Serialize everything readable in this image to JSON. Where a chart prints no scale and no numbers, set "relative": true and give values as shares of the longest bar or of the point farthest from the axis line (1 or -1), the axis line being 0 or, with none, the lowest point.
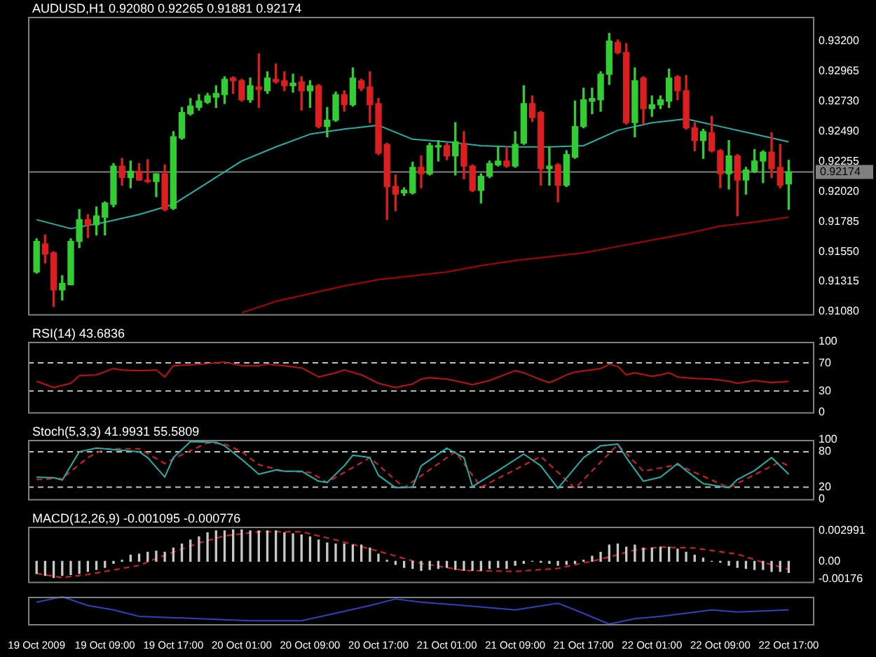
{
  "chart_data": [
    {
      "type": "candlestick",
      "title": "AUDUSD,H1 0.92080 0.92265 0.91881 0.92174",
      "x": [
        "2009-10-19T01:00",
        "2009-10-19T02:00",
        "2009-10-19T03:00",
        "2009-10-19T04:00",
        "2009-10-19T05:00",
        "2009-10-19T06:00",
        "2009-10-19T07:00",
        "2009-10-19T08:00",
        "2009-10-19T09:00",
        "2009-10-19T10:00",
        "2009-10-19T11:00",
        "2009-10-19T12:00",
        "2009-10-19T13:00",
        "2009-10-19T14:00",
        "2009-10-19T15:00",
        "2009-10-19T16:00",
        "2009-10-19T17:00",
        "2009-10-19T18:00",
        "2009-10-19T19:00",
        "2009-10-19T20:00",
        "2009-10-19T21:00",
        "2009-10-19T22:00",
        "2009-10-19T23:00",
        "2009-10-20T00:00",
        "2009-10-20T01:00",
        "2009-10-20T02:00",
        "2009-10-20T03:00",
        "2009-10-20T04:00",
        "2009-10-20T05:00",
        "2009-10-20T06:00",
        "2009-10-20T07:00",
        "2009-10-20T08:00",
        "2009-10-20T09:00",
        "2009-10-20T10:00",
        "2009-10-20T11:00",
        "2009-10-20T12:00",
        "2009-10-20T13:00",
        "2009-10-20T14:00",
        "2009-10-20T15:00",
        "2009-10-20T16:00",
        "2009-10-20T17:00",
        "2009-10-20T18:00",
        "2009-10-20T19:00",
        "2009-10-20T20:00",
        "2009-10-20T21:00",
        "2009-10-20T22:00",
        "2009-10-20T23:00",
        "2009-10-21T00:00",
        "2009-10-21T01:00",
        "2009-10-21T02:00",
        "2009-10-21T03:00",
        "2009-10-21T04:00",
        "2009-10-21T05:00",
        "2009-10-21T06:00",
        "2009-10-21T07:00",
        "2009-10-21T08:00",
        "2009-10-21T09:00",
        "2009-10-21T10:00",
        "2009-10-21T11:00",
        "2009-10-21T12:00",
        "2009-10-21T13:00",
        "2009-10-21T14:00",
        "2009-10-21T15:00",
        "2009-10-21T16:00",
        "2009-10-21T17:00",
        "2009-10-21T18:00",
        "2009-10-21T19:00",
        "2009-10-21T20:00",
        "2009-10-21T21:00",
        "2009-10-21T22:00",
        "2009-10-21T23:00",
        "2009-10-22T00:00",
        "2009-10-22T01:00",
        "2009-10-22T02:00",
        "2009-10-22T03:00",
        "2009-10-22T04:00",
        "2009-10-22T05:00",
        "2009-10-22T06:00",
        "2009-10-22T07:00",
        "2009-10-22T08:00",
        "2009-10-22T09:00",
        "2009-10-22T10:00",
        "2009-10-22T11:00",
        "2009-10-22T12:00",
        "2009-10-22T13:00",
        "2009-10-22T14:00",
        "2009-10-22T15:00",
        "2009-10-22T16:00",
        "2009-10-22T17:00"
      ],
      "ohlc": [
        [
          0.9139,
          0.9165,
          0.9138,
          0.9163
        ],
        [
          0.9161,
          0.9168,
          0.9146,
          0.9153
        ],
        [
          0.9154,
          0.9155,
          0.9112,
          0.9125
        ],
        [
          0.9125,
          0.9136,
          0.9117,
          0.913
        ],
        [
          0.9129,
          0.9165,
          0.9129,
          0.9163
        ],
        [
          0.9163,
          0.9188,
          0.9158,
          0.918
        ],
        [
          0.918,
          0.9184,
          0.9166,
          0.9176
        ],
        [
          0.9176,
          0.919,
          0.9168,
          0.9183
        ],
        [
          0.9182,
          0.9194,
          0.9168,
          0.9193
        ],
        [
          0.9192,
          0.9224,
          0.919,
          0.9222
        ],
        [
          0.9222,
          0.9228,
          0.9207,
          0.9213
        ],
        [
          0.9213,
          0.9226,
          0.9205,
          0.9218
        ],
        [
          0.9218,
          0.9224,
          0.9211,
          0.9211
        ],
        [
          0.9211,
          0.9227,
          0.9209,
          0.921
        ],
        [
          0.921,
          0.9216,
          0.9198,
          0.9216
        ],
        [
          0.9216,
          0.9223,
          0.9187,
          0.9188
        ],
        [
          0.9189,
          0.9249,
          0.9188,
          0.9245
        ],
        [
          0.9244,
          0.9268,
          0.9243,
          0.9264
        ],
        [
          0.9263,
          0.9275,
          0.9262,
          0.9269
        ],
        [
          0.9268,
          0.9278,
          0.9266,
          0.9273
        ],
        [
          0.9272,
          0.9279,
          0.9271,
          0.9277
        ],
        [
          0.9276,
          0.9285,
          0.9268,
          0.9279
        ],
        [
          0.9278,
          0.9292,
          0.9271,
          0.929
        ],
        [
          0.9291,
          0.9292,
          0.9279,
          0.9289
        ],
        [
          0.9289,
          0.929,
          0.9273,
          0.9274
        ],
        [
          0.9274,
          0.9291,
          0.9272,
          0.9285
        ],
        [
          0.9284,
          0.931,
          0.9268,
          0.9282
        ],
        [
          0.9281,
          0.9296,
          0.9279,
          0.9291
        ],
        [
          0.929,
          0.9302,
          0.9287,
          0.9288
        ],
        [
          0.9289,
          0.9296,
          0.9281,
          0.9285
        ],
        [
          0.9285,
          0.9294,
          0.928,
          0.9287
        ],
        [
          0.9288,
          0.9292,
          0.9266,
          0.9281
        ],
        [
          0.9281,
          0.9289,
          0.9268,
          0.9285
        ],
        [
          0.9285,
          0.9286,
          0.9252,
          0.9253
        ],
        [
          0.9253,
          0.9268,
          0.9245,
          0.9258
        ],
        [
          0.9258,
          0.928,
          0.9257,
          0.9278
        ],
        [
          0.9278,
          0.9281,
          0.9265,
          0.927
        ],
        [
          0.927,
          0.9299,
          0.9269,
          0.9291
        ],
        [
          0.9289,
          0.929,
          0.9281,
          0.9283
        ],
        [
          0.9284,
          0.9296,
          0.9256,
          0.927
        ],
        [
          0.9271,
          0.9275,
          0.9231,
          0.9232
        ],
        [
          0.9239,
          0.924,
          0.918,
          0.9206
        ],
        [
          0.9206,
          0.9215,
          0.9187,
          0.92
        ],
        [
          0.9201,
          0.9205,
          0.9199,
          0.9203
        ],
        [
          0.9201,
          0.9225,
          0.92,
          0.9221
        ],
        [
          0.9221,
          0.923,
          0.9205,
          0.9216
        ],
        [
          0.9216,
          0.924,
          0.9215,
          0.9238
        ],
        [
          0.9237,
          0.9242,
          0.9226,
          0.9238
        ],
        [
          0.9238,
          0.924,
          0.9227,
          0.923
        ],
        [
          0.923,
          0.9256,
          0.9215,
          0.9241
        ],
        [
          0.924,
          0.9249,
          0.9212,
          0.9222
        ],
        [
          0.9222,
          0.9223,
          0.9202,
          0.9203
        ],
        [
          0.9203,
          0.9216,
          0.9193,
          0.9214
        ],
        [
          0.9214,
          0.9226,
          0.9213,
          0.9224
        ],
        [
          0.9223,
          0.9237,
          0.9222,
          0.9226
        ],
        [
          0.9226,
          0.9237,
          0.9221,
          0.9222
        ],
        [
          0.9222,
          0.9249,
          0.9221,
          0.9239
        ],
        [
          0.924,
          0.9285,
          0.9239,
          0.9271
        ],
        [
          0.9271,
          0.9277,
          0.9257,
          0.926
        ],
        [
          0.9264,
          0.9265,
          0.9207,
          0.922
        ],
        [
          0.922,
          0.9237,
          0.9207,
          0.9222
        ],
        [
          0.9223,
          0.9224,
          0.9194,
          0.9207
        ],
        [
          0.9207,
          0.9234,
          0.9206,
          0.9231
        ],
        [
          0.9229,
          0.9273,
          0.9228,
          0.9253
        ],
        [
          0.9253,
          0.9283,
          0.9252,
          0.9274
        ],
        [
          0.9273,
          0.9283,
          0.9263,
          0.9275
        ],
        [
          0.9274,
          0.9296,
          0.9265,
          0.9294
        ],
        [
          0.9294,
          0.9326,
          0.9286,
          0.932
        ],
        [
          0.9319,
          0.9321,
          0.931,
          0.9311
        ],
        [
          0.9311,
          0.9318,
          0.9255,
          0.9256
        ],
        [
          0.9256,
          0.9299,
          0.9245,
          0.9289
        ],
        [
          0.9291,
          0.9292,
          0.9255,
          0.9267
        ],
        [
          0.9267,
          0.9277,
          0.9261,
          0.927
        ],
        [
          0.927,
          0.9277,
          0.9267,
          0.9274
        ],
        [
          0.9273,
          0.9298,
          0.9268,
          0.9291
        ],
        [
          0.9292,
          0.9293,
          0.9274,
          0.9281
        ],
        [
          0.9281,
          0.9293,
          0.9251,
          0.9252
        ],
        [
          0.9252,
          0.9256,
          0.9234,
          0.9242
        ],
        [
          0.9242,
          0.9251,
          0.9228,
          0.9249
        ],
        [
          0.9248,
          0.9261,
          0.9233,
          0.9234
        ],
        [
          0.9234,
          0.9235,
          0.9205,
          0.9216
        ],
        [
          0.9216,
          0.9242,
          0.9204,
          0.923
        ],
        [
          0.923,
          0.9231,
          0.9183,
          0.9211
        ],
        [
          0.9211,
          0.9221,
          0.92,
          0.9219
        ],
        [
          0.9218,
          0.9235,
          0.9217,
          0.9226
        ],
        [
          0.9226,
          0.9234,
          0.9209,
          0.9233
        ],
        [
          0.9233,
          0.9248,
          0.9213,
          0.922
        ],
        [
          0.9221,
          0.9239,
          0.9205,
          0.9207
        ],
        [
          0.9208,
          0.92265,
          0.91881,
          0.92174
        ]
      ],
      "colors": [
        "#32cd32",
        "#dc1e1e",
        "#dc1e1e",
        "#32cd32",
        "#32cd32",
        "#32cd32",
        "#dc1e1e",
        "#32cd32",
        "#32cd32",
        "#32cd32",
        "#dc1e1e",
        "#32cd32",
        "#dc1e1e",
        "#dc1e1e",
        "#32cd32",
        "#dc1e1e",
        "#32cd32",
        "#32cd32",
        "#32cd32",
        "#32cd32",
        "#32cd32",
        "#32cd32",
        "#32cd32",
        "#dc1e1e",
        "#dc1e1e",
        "#32cd32",
        "#dc1e1e",
        "#32cd32",
        "#dc1e1e",
        "#dc1e1e",
        "#32cd32",
        "#dc1e1e",
        "#32cd32",
        "#dc1e1e",
        "#32cd32",
        "#32cd32",
        "#dc1e1e",
        "#32cd32",
        "#dc1e1e",
        "#dc1e1e",
        "#dc1e1e",
        "#dc1e1e",
        "#dc1e1e",
        "#32cd32",
        "#32cd32",
        "#dc1e1e",
        "#32cd32",
        "#32cd32",
        "#dc1e1e",
        "#32cd32",
        "#dc1e1e",
        "#dc1e1e",
        "#32cd32",
        "#32cd32",
        "#32cd32",
        "#dc1e1e",
        "#32cd32",
        "#32cd32",
        "#dc1e1e",
        "#dc1e1e",
        "#32cd32",
        "#dc1e1e",
        "#32cd32",
        "#32cd32",
        "#32cd32",
        "#32cd32",
        "#32cd32",
        "#32cd32",
        "#dc1e1e",
        "#dc1e1e",
        "#32cd32",
        "#dc1e1e",
        "#32cd32",
        "#32cd32",
        "#32cd32",
        "#dc1e1e",
        "#dc1e1e",
        "#dc1e1e",
        "#32cd32",
        "#dc1e1e",
        "#dc1e1e",
        "#32cd32",
        "#dc1e1e",
        "#32cd32",
        "#32cd32",
        "#32cd32",
        "#dc1e1e",
        "#dc1e1e",
        "#32cd32"
      ],
      "series": [
        {
          "type": "line",
          "color": "#20b2aa",
          "x": [
            "2009-10-19T01:00",
            "2009-10-19T05:00",
            "2009-10-19T09:00",
            "2009-10-19T13:00",
            "2009-10-19T17:00",
            "2009-10-19T21:00",
            "2009-10-20T01:00",
            "2009-10-20T05:00",
            "2009-10-20T09:00",
            "2009-10-20T13:00",
            "2009-10-20T17:00",
            "2009-10-20T21:00",
            "2009-10-21T01:00",
            "2009-10-21T05:00",
            "2009-10-21T09:00",
            "2009-10-21T13:00",
            "2009-10-21T17:00",
            "2009-10-21T21:00",
            "2009-10-22T01:00",
            "2009-10-22T05:00",
            "2009-10-22T09:00",
            "2009-10-22T13:00",
            "2009-10-22T17:00"
          ],
          "values": [
            0.918,
            0.9173,
            0.9178,
            0.9184,
            0.9192,
            0.9209,
            0.9226,
            0.9237,
            0.9247,
            0.9251,
            0.9254,
            0.9243,
            0.9241,
            0.9238,
            0.9237,
            0.9237,
            0.9238,
            0.925,
            0.9256,
            0.9259,
            0.9253,
            0.9247,
            0.9241
          ]
        },
        {
          "type": "line",
          "color": "#b00000",
          "x": [
            "2009-10-20T01:00",
            "2009-10-20T05:00",
            "2009-10-20T09:00",
            "2009-10-20T13:00",
            "2009-10-20T17:00",
            "2009-10-20T21:00",
            "2009-10-21T01:00",
            "2009-10-21T05:00",
            "2009-10-21T09:00",
            "2009-10-21T13:00",
            "2009-10-21T17:00",
            "2009-10-21T21:00",
            "2009-10-22T01:00",
            "2009-10-22T05:00",
            "2009-10-22T09:00",
            "2009-10-22T13:00",
            "2009-10-22T17:00"
          ],
          "values": [
            0.9107,
            0.9116,
            0.9122,
            0.9128,
            0.9133,
            0.9136,
            0.9139,
            0.9144,
            0.9148,
            0.9151,
            0.9154,
            0.9159,
            0.9164,
            0.9169,
            0.9175,
            0.9178,
            0.9182
          ]
        }
      ],
      "xlim": [
        "2009-10-19T00:00",
        "2009-10-22T20:00"
      ],
      "ylim": [
        0.9106,
        0.9339
      ],
      "yticks": [
        {
          "value": 0.932,
          "label": "0.93200"
        },
        {
          "value": 0.92965,
          "label": "0.92965"
        },
        {
          "value": 0.9273,
          "label": "0.92730"
        },
        {
          "value": 0.9249,
          "label": "0.92490"
        },
        {
          "value": 0.92255,
          "label": "0.92255"
        },
        {
          "value": 0.9202,
          "label": "0.92020"
        },
        {
          "value": 0.91785,
          "label": "0.91785"
        },
        {
          "value": 0.9155,
          "label": "0.91550"
        },
        {
          "value": 0.91315,
          "label": "0.91315"
        },
        {
          "value": 0.9108,
          "label": "0.91080"
        }
      ],
      "ref_lines": [
        {
          "axis": "y",
          "value": 0.92174,
          "label": "0.92174",
          "color": "#808080"
        }
      ],
      "tick_labels": "y"
    },
    {
      "type": "line",
      "title": "RSI(14) 43.6836",
      "series": [
        {
          "color": "#c01010",
          "x": [
            "2009-10-19T01:00",
            "2009-10-19T03:00",
            "2009-10-19T05:00",
            "2009-10-19T06:00",
            "2009-10-19T08:00",
            "2009-10-19T10:00",
            "2009-10-19T11:00",
            "2009-10-19T13:00",
            "2009-10-19T15:00",
            "2009-10-19T16:00",
            "2009-10-19T17:00",
            "2009-10-19T20:00",
            "2009-10-19T21:00",
            "2009-10-19T23:00",
            "2009-10-20T01:00",
            "2009-10-20T03:00",
            "2009-10-20T04:00",
            "2009-10-20T06:00",
            "2009-10-20T08:00",
            "2009-10-20T10:00",
            "2009-10-20T12:00",
            "2009-10-20T13:00",
            "2009-10-20T15:00",
            "2009-10-20T17:00",
            "2009-10-20T19:00",
            "2009-10-20T21:00",
            "2009-10-20T22:00",
            "2009-10-20T23:00",
            "2009-10-21T01:00",
            "2009-10-21T03:00",
            "2009-10-21T04:00",
            "2009-10-21T06:00",
            "2009-10-21T09:00",
            "2009-10-21T10:00",
            "2009-10-21T12:00",
            "2009-10-21T13:00",
            "2009-10-21T14:00",
            "2009-10-21T15:00",
            "2009-10-21T16:00",
            "2009-10-21T19:00",
            "2009-10-21T20:00",
            "2009-10-21T21:00",
            "2009-10-21T22:00",
            "2009-10-21T23:00",
            "2009-10-22T01:00",
            "2009-10-22T02:00",
            "2009-10-22T03:00",
            "2009-10-22T04:00",
            "2009-10-22T06:00",
            "2009-10-22T08:00",
            "2009-10-22T10:00",
            "2009-10-22T11:00",
            "2009-10-22T13:00",
            "2009-10-22T15:00",
            "2009-10-22T17:00"
          ],
          "values": [
            44,
            35,
            41,
            52,
            53,
            62,
            60,
            59,
            60,
            50,
            66,
            68,
            69,
            71,
            66,
            66,
            68,
            66,
            63,
            50,
            56,
            60,
            53,
            41,
            35,
            40,
            47,
            49,
            47,
            42,
            39,
            45,
            59,
            56,
            46,
            42,
            47,
            53,
            57,
            62,
            68,
            65,
            53,
            56,
            51,
            53,
            56,
            50,
            48,
            47,
            44,
            41,
            45,
            42,
            43.6836
          ]
        }
      ],
      "xlim": [
        "2009-10-19T00:00",
        "2009-10-22T20:00"
      ],
      "ylim": [
        0,
        100
      ],
      "yticks": [
        100,
        70,
        30,
        0
      ],
      "ref_lines": [
        {
          "axis": "y",
          "value": 70,
          "color": "#c0c0c0",
          "line_style": "dashed"
        },
        {
          "axis": "y",
          "value": 30,
          "color": "#c0c0c0",
          "line_style": "dashed"
        }
      ],
      "tick_labels": "y"
    },
    {
      "type": "line",
      "title": "Stoch(5,3,3) 41.9931 55.5809",
      "series": [
        {
          "color": "#20b2aa",
          "x": [
            "2009-10-19T01:00",
            "2009-10-19T03:00",
            "2009-10-19T04:00",
            "2009-10-19T06:00",
            "2009-10-19T08:00",
            "2009-10-19T13:00",
            "2009-10-19T14:00",
            "2009-10-19T16:00",
            "2009-10-19T17:00",
            "2009-10-19T19:00",
            "2009-10-19T22:00",
            "2009-10-19T23:00",
            "2009-10-20T01:00",
            "2009-10-20T03:00",
            "2009-10-20T05:00",
            "2009-10-20T06:00",
            "2009-10-20T08:00",
            "2009-10-20T10:00",
            "2009-10-20T11:00",
            "2009-10-20T13:00",
            "2009-10-20T14:00",
            "2009-10-20T16:00",
            "2009-10-20T17:00",
            "2009-10-20T19:00",
            "2009-10-20T21:00",
            "2009-10-20T22:00",
            "2009-10-21T01:00",
            "2009-10-21T03:00",
            "2009-10-21T04:00",
            "2009-10-21T07:00",
            "2009-10-21T10:00",
            "2009-10-21T12:00",
            "2009-10-21T14:00",
            "2009-10-21T17:00",
            "2009-10-21T19:00",
            "2009-10-21T21:00",
            "2009-10-21T22:00",
            "2009-10-22T00:00",
            "2009-10-22T02:00",
            "2009-10-22T04:00",
            "2009-10-22T05:00",
            "2009-10-22T07:00",
            "2009-10-22T10:00",
            "2009-10-22T11:00",
            "2009-10-22T13:00",
            "2009-10-22T15:00",
            "2009-10-22T17:00"
          ],
          "values": [
            37,
            36,
            32,
            80,
            86,
            80,
            70,
            37,
            70,
            97,
            96,
            90,
            67,
            42,
            49,
            47,
            47,
            30,
            28,
            56,
            74,
            70,
            40,
            19,
            20,
            56,
            86,
            70,
            21,
            48,
            76,
            56,
            18,
            70,
            90,
            93,
            70,
            30,
            37,
            60,
            48,
            26,
            19,
            33,
            48,
            70,
            41.9931
          ]
        },
        {
          "color": "#e02020",
          "line_style": "dashed",
          "x": [
            "2009-10-19T01:00",
            "2009-10-19T04:00",
            "2009-10-19T07:00",
            "2009-10-19T09:00",
            "2009-10-19T13:00",
            "2009-10-19T16:00",
            "2009-10-19T18:00",
            "2009-10-19T21:00",
            "2009-10-19T23:00",
            "2009-10-20T01:00",
            "2009-10-20T03:00",
            "2009-10-20T06:00",
            "2009-10-20T09:00",
            "2009-10-20T11:00",
            "2009-10-20T16:00",
            "2009-10-20T20:00",
            "2009-10-21T02:00",
            "2009-10-21T05:00",
            "2009-10-21T12:00",
            "2009-10-21T16:00",
            "2009-10-21T21:00",
            "2009-10-22T00:00",
            "2009-10-22T04:00",
            "2009-10-22T10:00",
            "2009-10-22T16:00",
            "2009-10-22T17:00"
          ],
          "values": [
            33,
            35,
            70,
            85,
            85,
            60,
            75,
            95,
            93,
            80,
            58,
            47,
            45,
            28,
            70,
            19,
            80,
            20,
            72,
            18,
            92,
            47,
            58,
            19,
            63,
            55.5809
          ]
        }
      ],
      "xlim": [
        "2009-10-19T00:00",
        "2009-10-22T20:00"
      ],
      "ylim": [
        0,
        100
      ],
      "yticks": [
        100,
        80,
        20,
        0
      ],
      "ref_lines": [
        {
          "axis": "y",
          "value": 80,
          "color": "#c0c0c0",
          "line_style": "dashed"
        },
        {
          "axis": "y",
          "value": 20,
          "color": "#c0c0c0",
          "line_style": "dashed"
        }
      ],
      "tick_labels": "y"
    },
    {
      "type": "bar",
      "title": "MACD(12,26,9) -0.001095 -0.000776",
      "x": [
        "2009-10-19T01:00",
        "2009-10-19T02:00",
        "2009-10-19T03:00",
        "2009-10-19T04:00",
        "2009-10-19T05:00",
        "2009-10-19T06:00",
        "2009-10-19T07:00",
        "2009-10-19T08:00",
        "2009-10-19T09:00",
        "2009-10-19T10:00",
        "2009-10-19T11:00",
        "2009-10-19T12:00",
        "2009-10-19T13:00",
        "2009-10-19T14:00",
        "2009-10-19T15:00",
        "2009-10-19T16:00",
        "2009-10-19T17:00",
        "2009-10-19T18:00",
        "2009-10-19T19:00",
        "2009-10-19T20:00",
        "2009-10-19T21:00",
        "2009-10-19T22:00",
        "2009-10-19T23:00",
        "2009-10-20T00:00",
        "2009-10-20T01:00",
        "2009-10-20T02:00",
        "2009-10-20T03:00",
        "2009-10-20T04:00",
        "2009-10-20T05:00",
        "2009-10-20T06:00",
        "2009-10-20T07:00",
        "2009-10-20T08:00",
        "2009-10-20T09:00",
        "2009-10-20T10:00",
        "2009-10-20T11:00",
        "2009-10-20T12:00",
        "2009-10-20T13:00",
        "2009-10-20T14:00",
        "2009-10-20T15:00",
        "2009-10-20T16:00",
        "2009-10-20T17:00",
        "2009-10-20T18:00",
        "2009-10-20T19:00",
        "2009-10-20T20:00",
        "2009-10-20T21:00",
        "2009-10-20T22:00",
        "2009-10-20T23:00",
        "2009-10-21T00:00",
        "2009-10-21T01:00",
        "2009-10-21T02:00",
        "2009-10-21T03:00",
        "2009-10-21T04:00",
        "2009-10-21T05:00",
        "2009-10-21T06:00",
        "2009-10-21T07:00",
        "2009-10-21T08:00",
        "2009-10-21T09:00",
        "2009-10-21T10:00",
        "2009-10-21T11:00",
        "2009-10-21T12:00",
        "2009-10-21T13:00",
        "2009-10-21T14:00",
        "2009-10-21T15:00",
        "2009-10-21T16:00",
        "2009-10-21T17:00",
        "2009-10-21T18:00",
        "2009-10-21T19:00",
        "2009-10-21T20:00",
        "2009-10-21T21:00",
        "2009-10-21T22:00",
        "2009-10-21T23:00",
        "2009-10-22T00:00",
        "2009-10-22T01:00",
        "2009-10-22T02:00",
        "2009-10-22T03:00",
        "2009-10-22T04:00",
        "2009-10-22T05:00",
        "2009-10-22T06:00",
        "2009-10-22T07:00",
        "2009-10-22T08:00",
        "2009-10-22T09:00",
        "2009-10-22T10:00",
        "2009-10-22T11:00",
        "2009-10-22T12:00",
        "2009-10-22T13:00",
        "2009-10-22T14:00",
        "2009-10-22T15:00",
        "2009-10-22T16:00",
        "2009-10-22T17:00"
      ],
      "series": [
        {
          "color": "#c8c8c8",
          "values": [
            -0.0012,
            -0.0014,
            -0.0016,
            -0.0014,
            -0.0013,
            -0.0012,
            -0.001,
            -0.0008,
            -0.0006,
            -0.0002,
            0.0001,
            0.0006,
            0.0007,
            0.0009,
            0.001,
            0.0009,
            0.0013,
            0.0017,
            0.0021,
            0.0024,
            0.0028,
            0.003,
            0.003,
            0.0031,
            0.0031,
            0.003,
            0.003,
            0.003,
            0.003,
            0.0028,
            0.0027,
            0.0026,
            0.0024,
            0.0021,
            0.0018,
            0.0017,
            0.0017,
            0.0016,
            0.0016,
            0.0013,
            0.0007,
            0.0001,
            -0.0003,
            -0.0006,
            -0.0007,
            -0.0009,
            -0.0008,
            -0.0007,
            -0.0006,
            -0.0008,
            -0.0009,
            -0.0009,
            -0.0009,
            -0.0007,
            -0.0006,
            -0.0007,
            -0.0004,
            -0.0002,
            0,
            -0.0001,
            -0.0002,
            -0.0004,
            -0.0003,
            -0.0002,
            0.0001,
            0.0005,
            0.0009,
            0.0016,
            0.0017,
            0.0014,
            0.0016,
            0.0013,
            0.0013,
            0.0014,
            0.0014,
            0.0012,
            0.0009,
            0.0006,
            0.0003,
            0,
            -0.0001,
            -0.0004,
            -0.0006,
            -0.0007,
            -0.0008,
            -0.0008,
            -0.001,
            -0.001,
            -0.001095
          ]
        },
        {
          "type": "line",
          "color": "#e02020",
          "line_style": "dashed",
          "x": [
            "2009-10-19T01:00",
            "2009-10-19T04:00",
            "2009-10-19T07:00",
            "2009-10-19T13:00",
            "2009-10-19T16:00",
            "2009-10-19T20:00",
            "2009-10-19T23:00",
            "2009-10-20T03:00",
            "2009-10-20T08:00",
            "2009-10-20T12:00",
            "2009-10-20T17:00",
            "2009-10-20T22:00",
            "2009-10-21T03:00",
            "2009-10-21T09:00",
            "2009-10-21T14:00",
            "2009-10-21T19:00",
            "2009-10-21T23:00",
            "2009-10-22T02:00",
            "2009-10-22T06:00",
            "2009-10-22T11:00",
            "2009-10-22T14:00",
            "2009-10-22T17:00"
          ],
          "values": [
            -0.0012,
            -0.0016,
            -0.0013,
            -0.0004,
            0.0006,
            0.0018,
            0.0025,
            0.0029,
            0.0029,
            0.0021,
            0.001,
            -0.0002,
            -0.0009,
            -0.001,
            -0.0007,
            0.0002,
            0.0011,
            0.0014,
            0.0013,
            0.0007,
            -0.0001,
            -0.000776
          ]
        }
      ],
      "xlim": [
        "2009-10-19T00:00",
        "2009-10-22T20:00"
      ],
      "ylim": [
        -0.002,
        0.0034
      ],
      "yticks": [
        0.002991,
        {
          "value": 0,
          "label": "0.00"
        },
        -0.00176
      ],
      "tick_labels": "y"
    },
    {
      "type": "line",
      "relative": true,
      "series": [
        {
          "color": "#3040c0",
          "x": [
            "2009-10-19T01:00",
            "2009-10-19T04:00",
            "2009-10-19T07:00",
            "2009-10-19T10:00",
            "2009-10-19T13:00",
            "2009-10-19T20:00",
            "2009-10-20T02:00",
            "2009-10-20T08:00",
            "2009-10-20T12:00",
            "2009-10-20T16:00",
            "2009-10-20T19:00",
            "2009-10-20T22:00",
            "2009-10-21T03:00",
            "2009-10-21T09:00",
            "2009-10-21T14:00",
            "2009-10-21T16:00",
            "2009-10-21T20:00",
            "2009-10-21T23:00",
            "2009-10-22T02:00",
            "2009-10-22T05:00",
            "2009-10-22T08:00",
            "2009-10-22T11:00",
            "2009-10-22T17:00"
          ],
          "values": [
            0.8,
            1,
            0.68,
            0.52,
            0.28,
            0.2,
            0.12,
            0.12,
            0.4,
            0.68,
            0.92,
            0.8,
            0.68,
            0.52,
            0.76,
            0.52,
            0,
            0.2,
            0.28,
            0.4,
            0.52,
            0.44,
            0.52
          ]
        }
      ],
      "xlim": [
        "2009-10-19T00:00",
        "2009-10-22T20:00"
      ],
      "xticks": [
        {
          "value": "2009-10-19T01:00",
          "label": "19 Oct 2009"
        },
        {
          "value": "2009-10-19T09:00",
          "label": "19 Oct 09:00"
        },
        {
          "value": "2009-10-19T17:00",
          "label": "19 Oct 17:00"
        },
        {
          "value": "2009-10-20T01:00",
          "label": "20 Oct 01:00"
        },
        {
          "value": "2009-10-20T09:00",
          "label": "20 Oct 09:00"
        },
        {
          "value": "2009-10-20T17:00",
          "label": "20 Oct 17:00"
        },
        {
          "value": "2009-10-21T01:00",
          "label": "21 Oct 01:00"
        },
        {
          "value": "2009-10-21T09:00",
          "label": "21 Oct 09:00"
        },
        {
          "value": "2009-10-21T17:00",
          "label": "21 Oct 17:00"
        },
        {
          "value": "2009-10-22T01:00",
          "label": "22 Oct 01:00"
        },
        {
          "value": "2009-10-22T09:00",
          "label": "22 Oct 09:00"
        },
        {
          "value": "2009-10-22T17:00",
          "label": "22 Oct 17:00"
        }
      ],
      "tick_labels": "x"
    }
  ]
}
